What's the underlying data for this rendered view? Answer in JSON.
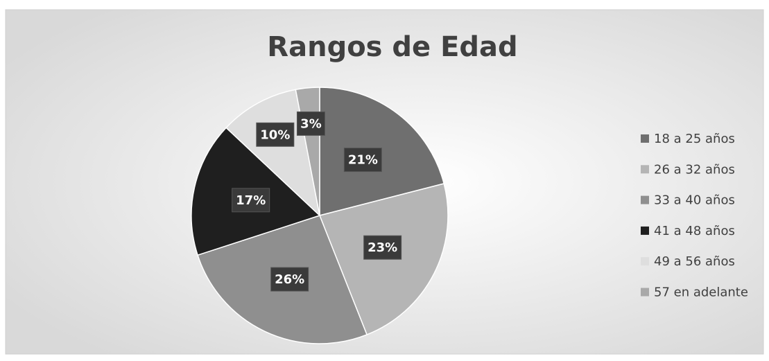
{
  "chart_data": {
    "type": "pie",
    "title": "Rangos de Edad",
    "categories": [
      "18 a 25 años",
      "26 a 32 años",
      "33 a 40 años",
      "41 a 48 años",
      "49 a 56 años",
      "57 en adelante"
    ],
    "values": [
      21,
      23,
      26,
      17,
      10,
      3
    ],
    "value_labels": [
      "21%",
      "23%",
      "26%",
      "17%",
      "10%",
      "3%"
    ],
    "colors": [
      "#6f6f6f",
      "#b5b5b5",
      "#8f8f8f",
      "#1f1f1f",
      "#dedede",
      "#a9a9a9"
    ],
    "legend": "right"
  }
}
